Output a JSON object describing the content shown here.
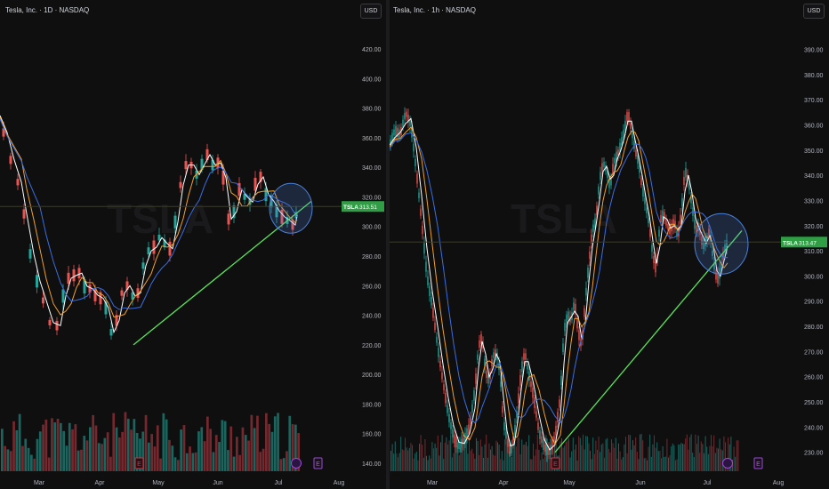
{
  "chart_data": [
    {
      "type": "line",
      "title": "Tesla, Inc. · 1D · NASDAQ",
      "symbol": "TSLA",
      "currency": "USD",
      "interval": "1D",
      "last_price": "313.51",
      "y_ticks": [
        "420.00",
        "400.00",
        "380.00",
        "360.00",
        "340.00",
        "320.00",
        "300.00",
        "280.00",
        "260.00",
        "240.00",
        "220.00",
        "200.00",
        "180.00",
        "160.00",
        "140.00"
      ],
      "x_ticks": [
        "Mar",
        "Apr",
        "May",
        "Jun",
        "Jul",
        "Aug"
      ],
      "event_markers": [
        "E",
        "E"
      ],
      "ylim": [
        140,
        420
      ],
      "price_path": [
        [
          0,
          375
        ],
        [
          8,
          352
        ],
        [
          16,
          338
        ],
        [
          24,
          322
        ],
        [
          30,
          295
        ],
        [
          38,
          268
        ],
        [
          45,
          258
        ],
        [
          52,
          242
        ],
        [
          60,
          228
        ],
        [
          68,
          238
        ],
        [
          74,
          268
        ],
        [
          80,
          262
        ],
        [
          86,
          272
        ],
        [
          92,
          265
        ],
        [
          98,
          254
        ],
        [
          104,
          262
        ],
        [
          110,
          245
        ],
        [
          116,
          258
        ],
        [
          122,
          232
        ],
        [
          128,
          225
        ],
        [
          134,
          248
        ],
        [
          140,
          262
        ],
        [
          146,
          258
        ],
        [
          152,
          248
        ],
        [
          158,
          262
        ],
        [
          164,
          285
        ],
        [
          170,
          282
        ],
        [
          176,
          290
        ],
        [
          182,
          295
        ],
        [
          188,
          282
        ],
        [
          194,
          288
        ],
        [
          200,
          318
        ],
        [
          206,
          338
        ],
        [
          212,
          345
        ],
        [
          218,
          338
        ],
        [
          224,
          332
        ],
        [
          230,
          352
        ],
        [
          236,
          345
        ],
        [
          242,
          338
        ],
        [
          248,
          348
        ],
        [
          254,
          318
        ],
        [
          260,
          292
        ],
        [
          266,
          328
        ],
        [
          272,
          322
        ],
        [
          278,
          318
        ],
        [
          284,
          315
        ],
        [
          290,
          342
        ],
        [
          296,
          325
        ],
        [
          302,
          318
        ],
        [
          308,
          316
        ],
        [
          314,
          305
        ],
        [
          320,
          308
        ],
        [
          326,
          300
        ],
        [
          332,
          302
        ],
        [
          334,
          313.5
        ]
      ],
      "trend_line": [
        [
          150,
          220
        ],
        [
          350,
          317
        ]
      ]
    },
    {
      "type": "line",
      "title": "Tesla, Inc. · 1h · NASDAQ",
      "symbol": "TSLA",
      "currency": "USD",
      "interval": "1h",
      "last_price": "313.47",
      "y_ticks": [
        "390.00",
        "380.00",
        "370.00",
        "360.00",
        "350.00",
        "340.00",
        "330.00",
        "320.00",
        "310.00",
        "300.00",
        "290.00",
        "280.00",
        "270.00",
        "260.00",
        "250.00",
        "240.00",
        "230.00"
      ],
      "x_ticks": [
        "Mar",
        "Apr",
        "May",
        "Jun",
        "Jul",
        "Aug"
      ],
      "event_markers": [
        "E",
        "E"
      ],
      "ylim": [
        226,
        393
      ],
      "price_path": [
        [
          0,
          352
        ],
        [
          6,
          358
        ],
        [
          12,
          356
        ],
        [
          18,
          365
        ],
        [
          24,
          360
        ],
        [
          30,
          342
        ],
        [
          36,
          322
        ],
        [
          42,
          300
        ],
        [
          48,
          288
        ],
        [
          54,
          272
        ],
        [
          60,
          258
        ],
        [
          66,
          245
        ],
        [
          72,
          236
        ],
        [
          78,
          232
        ],
        [
          84,
          235
        ],
        [
          90,
          240
        ],
        [
          96,
          255
        ],
        [
          100,
          272
        ],
        [
          104,
          276
        ],
        [
          108,
          262
        ],
        [
          112,
          258
        ],
        [
          116,
          268
        ],
        [
          120,
          270
        ],
        [
          124,
          262
        ],
        [
          128,
          242
        ],
        [
          132,
          235
        ],
        [
          136,
          230
        ],
        [
          140,
          236
        ],
        [
          144,
          248
        ],
        [
          148,
          262
        ],
        [
          152,
          270
        ],
        [
          156,
          262
        ],
        [
          162,
          252
        ],
        [
          168,
          238
        ],
        [
          174,
          232
        ],
        [
          180,
          230
        ],
        [
          186,
          236
        ],
        [
          192,
          252
        ],
        [
          196,
          278
        ],
        [
          200,
          285
        ],
        [
          204,
          282
        ],
        [
          208,
          290
        ],
        [
          212,
          278
        ],
        [
          216,
          272
        ],
        [
          220,
          290
        ],
        [
          224,
          305
        ],
        [
          228,
          318
        ],
        [
          232,
          322
        ],
        [
          236,
          338
        ],
        [
          240,
          345
        ],
        [
          244,
          342
        ],
        [
          248,
          335
        ],
        [
          252,
          345
        ],
        [
          256,
          348
        ],
        [
          260,
          352
        ],
        [
          264,
          358
        ],
        [
          268,
          365
        ],
        [
          272,
          358
        ],
        [
          276,
          350
        ],
        [
          280,
          345
        ],
        [
          284,
          335
        ],
        [
          288,
          328
        ],
        [
          292,
          320
        ],
        [
          296,
          308
        ],
        [
          300,
          302
        ],
        [
          304,
          322
        ],
        [
          308,
          325
        ],
        [
          312,
          320
        ],
        [
          316,
          318
        ],
        [
          320,
          322
        ],
        [
          324,
          315
        ],
        [
          328,
          325
        ],
        [
          332,
          342
        ],
        [
          336,
          338
        ],
        [
          340,
          328
        ],
        [
          344,
          318
        ],
        [
          348,
          320
        ],
        [
          352,
          312
        ],
        [
          356,
          314
        ],
        [
          360,
          318
        ],
        [
          364,
          306
        ],
        [
          368,
          298
        ],
        [
          372,
          302
        ],
        [
          376,
          310
        ],
        [
          380,
          313.5
        ]
      ],
      "trend_line": [
        [
          186,
          230
        ],
        [
          396,
          318
        ]
      ]
    }
  ]
}
